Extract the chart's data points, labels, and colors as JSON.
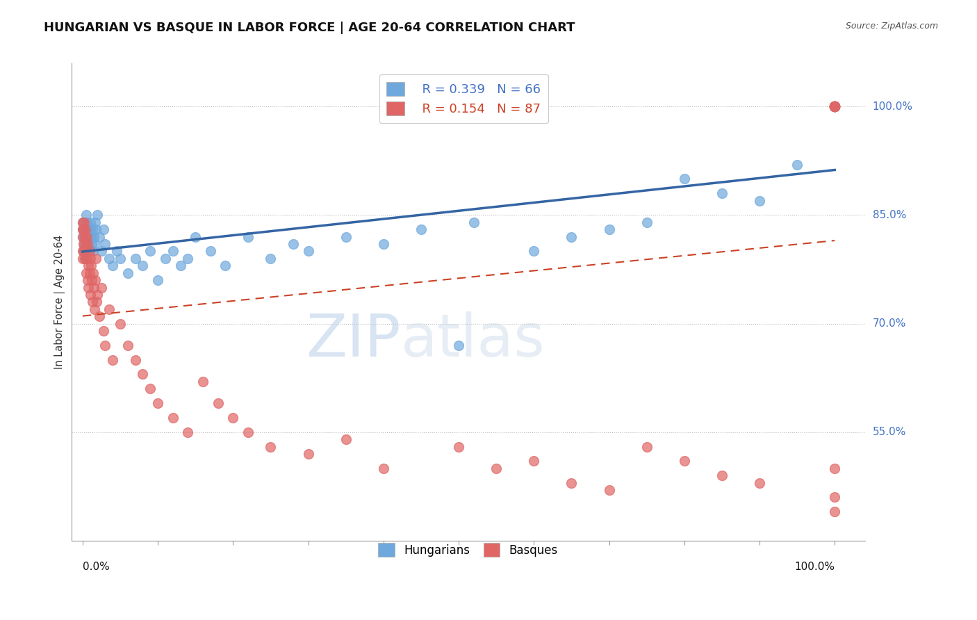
{
  "title": "HUNGARIAN VS BASQUE IN LABOR FORCE | AGE 20-64 CORRELATION CHART",
  "source": "Source: ZipAtlas.com",
  "ylabel": "In Labor Force | Age 20-64",
  "legend_blue_r": "R = 0.339",
  "legend_blue_n": "N = 66",
  "legend_pink_r": "R = 0.154",
  "legend_pink_n": "N = 87",
  "blue_color": "#6fa8dc",
  "pink_color": "#e06666",
  "blue_line_color": "#3465a4",
  "pink_line_color": "#cc4125",
  "watermark_color": "#d0dff0",
  "ytick_vals": [
    0.55,
    0.7,
    0.85,
    1.0
  ],
  "ytick_labels": [
    "55.0%",
    "70.0%",
    "85.0%",
    "100.0%"
  ],
  "blue_x": [
    0.0,
    0.0,
    0.0,
    0.001,
    0.002,
    0.003,
    0.004,
    0.005,
    0.005,
    0.006,
    0.007,
    0.008,
    0.009,
    0.009,
    0.01,
    0.01,
    0.011,
    0.012,
    0.013,
    0.014,
    0.015,
    0.016,
    0.017,
    0.018,
    0.02,
    0.022,
    0.025,
    0.028,
    0.03,
    0.035,
    0.04,
    0.045,
    0.05,
    0.06,
    0.07,
    0.08,
    0.09,
    0.1,
    0.11,
    0.12,
    0.13,
    0.14,
    0.15,
    0.17,
    0.19,
    0.22,
    0.25,
    0.28,
    0.3,
    0.35,
    0.4,
    0.45,
    0.5,
    0.52,
    0.6,
    0.65,
    0.7,
    0.75,
    0.8,
    0.85,
    0.9,
    0.95,
    1.0,
    1.0,
    1.0,
    1.0
  ],
  "blue_y": [
    0.82,
    0.83,
    0.84,
    0.8,
    0.81,
    0.82,
    0.79,
    0.83,
    0.85,
    0.84,
    0.81,
    0.83,
    0.8,
    0.82,
    0.83,
    0.84,
    0.82,
    0.81,
    0.83,
    0.8,
    0.82,
    0.81,
    0.84,
    0.83,
    0.85,
    0.82,
    0.8,
    0.83,
    0.81,
    0.79,
    0.78,
    0.8,
    0.79,
    0.77,
    0.79,
    0.78,
    0.8,
    0.76,
    0.79,
    0.8,
    0.78,
    0.79,
    0.82,
    0.8,
    0.78,
    0.82,
    0.79,
    0.81,
    0.8,
    0.82,
    0.81,
    0.83,
    0.67,
    0.84,
    0.8,
    0.82,
    0.83,
    0.84,
    0.9,
    0.88,
    0.87,
    0.92,
    1.0,
    1.0,
    1.0,
    1.0
  ],
  "pink_x": [
    0.0,
    0.0,
    0.0,
    0.0,
    0.0,
    0.001,
    0.001,
    0.002,
    0.002,
    0.003,
    0.003,
    0.004,
    0.004,
    0.005,
    0.005,
    0.006,
    0.006,
    0.007,
    0.007,
    0.008,
    0.008,
    0.009,
    0.009,
    0.01,
    0.01,
    0.011,
    0.012,
    0.013,
    0.014,
    0.015,
    0.016,
    0.017,
    0.018,
    0.019,
    0.02,
    0.022,
    0.025,
    0.028,
    0.03,
    0.035,
    0.04,
    0.05,
    0.06,
    0.07,
    0.08,
    0.09,
    0.1,
    0.12,
    0.14,
    0.16,
    0.18,
    0.2,
    0.22,
    0.25,
    0.3,
    0.35,
    0.4,
    0.5,
    0.55,
    0.6,
    0.65,
    0.7,
    0.75,
    0.8,
    0.85,
    0.9,
    1.0,
    1.0,
    1.0,
    1.0,
    1.0,
    1.0,
    1.0,
    1.0,
    1.0,
    1.0,
    1.0,
    1.0,
    1.0,
    1.0,
    1.0,
    1.0,
    1.0,
    1.0,
    1.0,
    1.0,
    1.0
  ],
  "pink_y": [
    0.83,
    0.84,
    0.82,
    0.8,
    0.79,
    0.81,
    0.83,
    0.8,
    0.84,
    0.82,
    0.79,
    0.81,
    0.83,
    0.8,
    0.77,
    0.82,
    0.79,
    0.76,
    0.81,
    0.78,
    0.75,
    0.8,
    0.77,
    0.79,
    0.74,
    0.78,
    0.76,
    0.73,
    0.77,
    0.75,
    0.72,
    0.76,
    0.79,
    0.73,
    0.74,
    0.71,
    0.75,
    0.69,
    0.67,
    0.72,
    0.65,
    0.7,
    0.67,
    0.65,
    0.63,
    0.61,
    0.59,
    0.57,
    0.55,
    0.62,
    0.59,
    0.57,
    0.55,
    0.53,
    0.52,
    0.54,
    0.5,
    0.53,
    0.5,
    0.51,
    0.48,
    0.47,
    0.53,
    0.51,
    0.49,
    0.48,
    1.0,
    1.0,
    1.0,
    1.0,
    1.0,
    1.0,
    1.0,
    1.0,
    1.0,
    1.0,
    1.0,
    1.0,
    1.0,
    1.0,
    1.0,
    1.0,
    1.0,
    1.0,
    0.44,
    0.46,
    0.5
  ]
}
